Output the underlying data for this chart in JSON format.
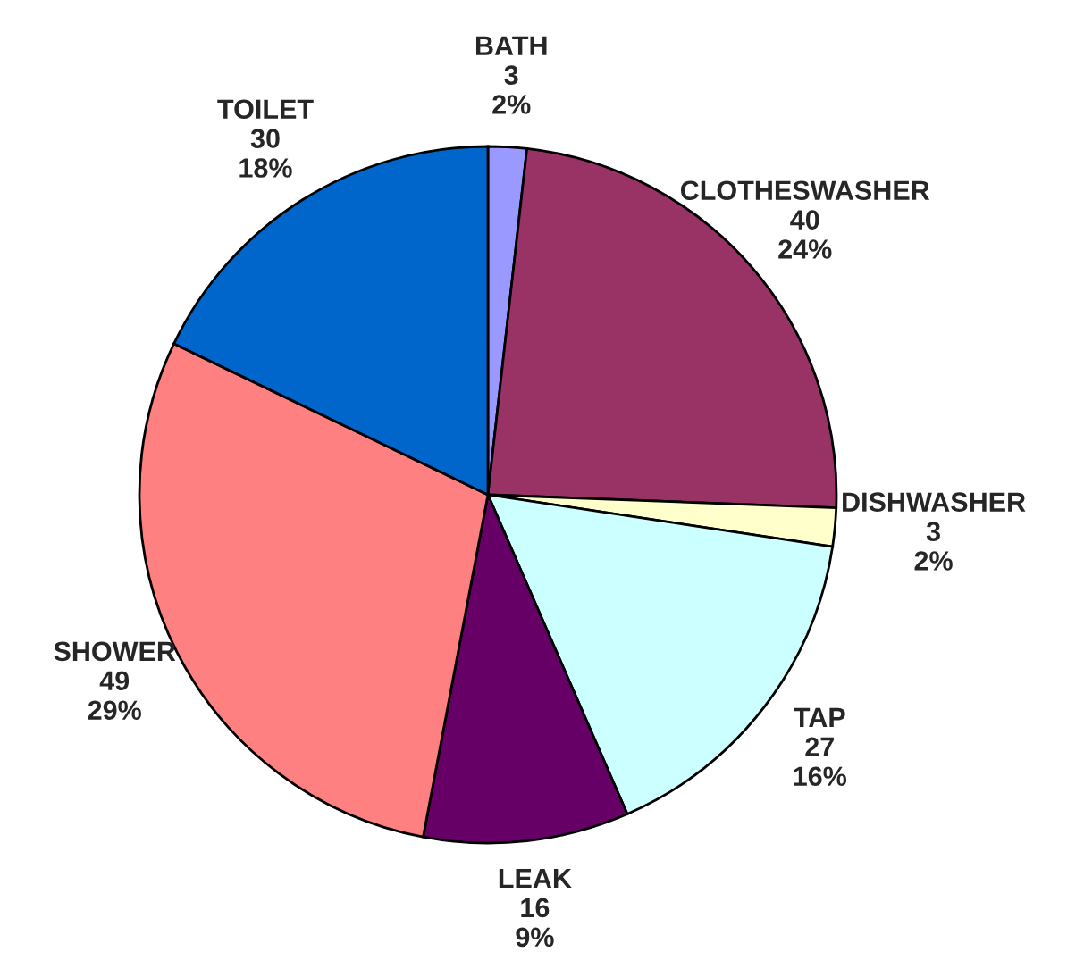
{
  "chart_data": {
    "type": "pie",
    "categories": [
      "BATH",
      "CLOTHESWASHER",
      "DISHWASHER",
      "TAP",
      "LEAK",
      "SHOWER",
      "TOILET"
    ],
    "values": [
      3,
      40,
      3,
      27,
      16,
      49,
      30
    ],
    "colors": [
      "#9999ff",
      "#993366",
      "#ffffcc",
      "#ccffff",
      "#660066",
      "#ff8080",
      "#0066cc"
    ],
    "value_labels": [
      "3\n2%",
      "40\n24%",
      "3\n2%",
      "27\n16%",
      "16\n9%",
      "49\n29%",
      "30\n18%"
    ],
    "legend": false
  }
}
